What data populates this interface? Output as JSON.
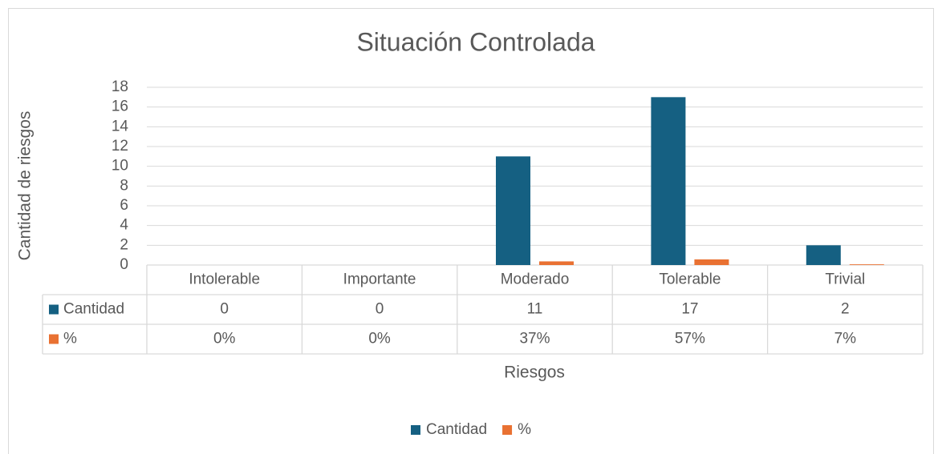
{
  "chart_data": {
    "type": "bar",
    "title": "Situación Controlada",
    "x_label": "Riesgos",
    "y_label": "Cantidad de riesgos",
    "categories": [
      "Intolerable",
      "Importante",
      "Moderado",
      "Tolerable",
      "Trivial"
    ],
    "series": [
      {
        "name": "Cantidad",
        "color": "#156082",
        "values": [
          0,
          0,
          11,
          17,
          2
        ]
      },
      {
        "name": "%",
        "color": "#e97132",
        "values": [
          0,
          0,
          0.37,
          0.57,
          0.07
        ],
        "value_labels": [
          "0%",
          "0%",
          "37%",
          "57%",
          "7%"
        ]
      }
    ],
    "ylim": [
      0,
      18
    ],
    "yticks": [
      0,
      2,
      4,
      6,
      8,
      10,
      12,
      14,
      16,
      18
    ],
    "grid": true,
    "legend": "bottom",
    "data_table": true
  }
}
